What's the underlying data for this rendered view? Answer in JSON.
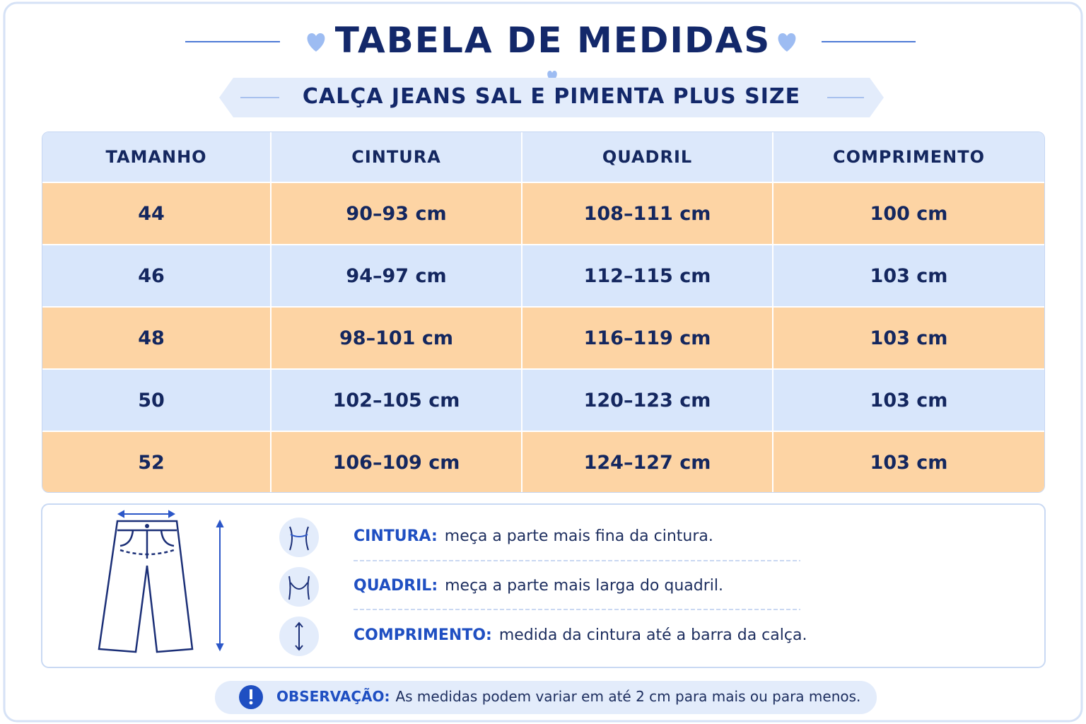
{
  "header": {
    "title": "TABELA DE MEDIDAS",
    "subtitle": "CALÇA JEANS SAL E PIMENTA PLUS SIZE"
  },
  "table": {
    "columns": [
      "TAMANHO",
      "CINTURA",
      "QUADRIL",
      "COMPRIMENTO"
    ],
    "rows": [
      [
        "44",
        "90–93 cm",
        "108–111 cm",
        "100 cm"
      ],
      [
        "46",
        "94–97 cm",
        "112–115 cm",
        "103 cm"
      ],
      [
        "48",
        "98–101 cm",
        "116–119 cm",
        "103 cm"
      ],
      [
        "50",
        "102–105 cm",
        "120–123 cm",
        "103 cm"
      ],
      [
        "52",
        "106–109 cm",
        "124–127 cm",
        "103 cm"
      ]
    ]
  },
  "guide": {
    "items": [
      {
        "label": "CINTURA:",
        "text": "meça a parte mais fina da cintura."
      },
      {
        "label": "QUADRIL:",
        "text": "meça a parte mais larga do quadril."
      },
      {
        "label": "COMPRIMENTO:",
        "text": "medida da cintura até a barra da calça."
      }
    ]
  },
  "note": {
    "label": "OBSERVAÇÃO:",
    "text": "As medidas podem variar em até 2 cm para mais ou para menos."
  }
}
